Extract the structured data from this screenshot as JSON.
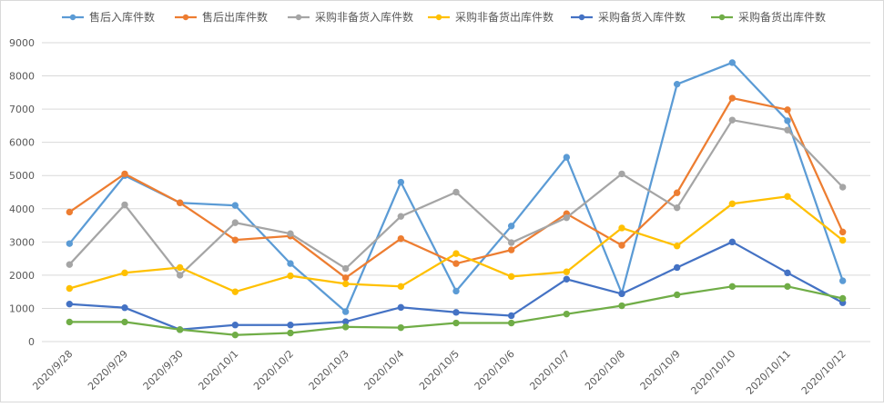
{
  "chart_data": {
    "type": "line",
    "title": "",
    "xlabel": "",
    "ylabel": "",
    "ylim": [
      0,
      9000
    ],
    "yticks": [
      0,
      1000,
      2000,
      3000,
      4000,
      5000,
      6000,
      7000,
      8000,
      9000
    ],
    "grid": "horizontal",
    "legend_position": "top",
    "categories": [
      "2020/9/28",
      "2020/9/29",
      "2020/9/30",
      "2020/10/1",
      "2020/10/2",
      "2020/10/3",
      "2020/10/4",
      "2020/10/5",
      "2020/10/6",
      "2020/10/7",
      "2020/10/8",
      "2020/10/9",
      "2020/10/10",
      "2020/10/11",
      "2020/10/12"
    ],
    "series": [
      {
        "name": "售后入库件数",
        "color": "#5b9bd5",
        "values": [
          2950,
          5000,
          4180,
          4100,
          2350,
          900,
          4800,
          1520,
          3480,
          5550,
          1450,
          7750,
          8400,
          6650,
          1830
        ]
      },
      {
        "name": "售后出库件数",
        "color": "#ed7d31",
        "values": [
          3900,
          5050,
          4180,
          3060,
          3180,
          1920,
          3100,
          2350,
          2760,
          3850,
          2900,
          4480,
          7330,
          6980,
          3300
        ]
      },
      {
        "name": "采购非备货入库件数",
        "color": "#a5a5a5",
        "values": [
          2320,
          4120,
          2000,
          3580,
          3250,
          2200,
          3770,
          4500,
          2980,
          3730,
          5050,
          4030,
          6670,
          6370,
          4650
        ]
      },
      {
        "name": "采购非备货出库件数",
        "color": "#ffc000",
        "values": [
          1600,
          2070,
          2230,
          1500,
          1980,
          1740,
          1660,
          2650,
          1960,
          2100,
          3420,
          2880,
          4150,
          4370,
          3050
        ]
      },
      {
        "name": "采购备货入库件数",
        "color": "#4472c4",
        "values": [
          1130,
          1020,
          360,
          500,
          500,
          600,
          1030,
          880,
          780,
          1880,
          1440,
          2230,
          3000,
          2070,
          1170
        ]
      },
      {
        "name": "采购备货出库件数",
        "color": "#70ad47",
        "values": [
          590,
          590,
          360,
          200,
          260,
          440,
          420,
          560,
          560,
          830,
          1080,
          1410,
          1660,
          1660,
          1300
        ]
      }
    ]
  }
}
